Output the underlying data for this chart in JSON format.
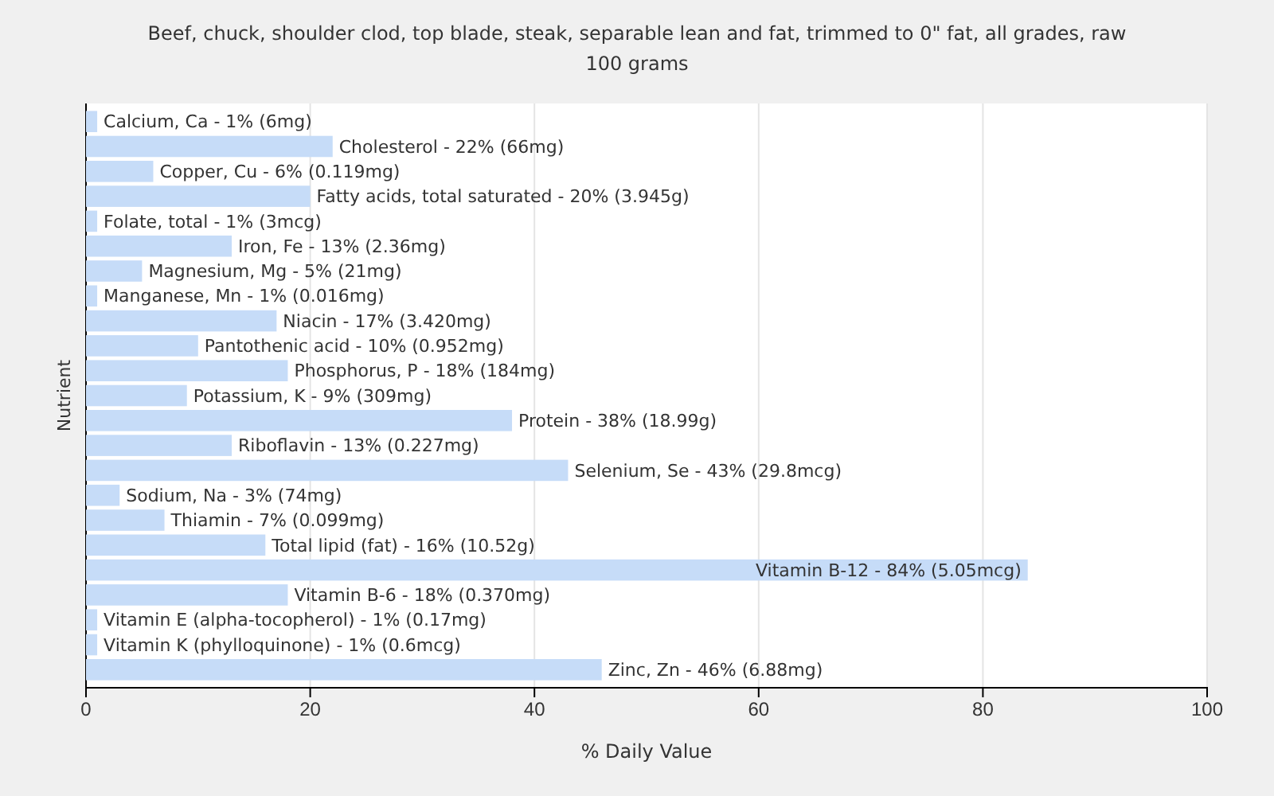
{
  "chart_data": {
    "type": "bar",
    "orientation": "horizontal",
    "title": "Beef, chuck, shoulder clod, top blade, steak, separable lean and fat, trimmed to 0\" fat, all grades, raw",
    "subtitle": "100 grams",
    "xlabel": "% Daily Value",
    "ylabel": "Nutrient",
    "categories": [
      "Calcium, Ca - 1% (6mg)",
      "Cholesterol - 22% (66mg)",
      "Copper, Cu - 6% (0.119mg)",
      "Fatty acids, total saturated - 20% (3.945g)",
      "Folate, total - 1% (3mcg)",
      "Iron, Fe - 13% (2.36mg)",
      "Magnesium, Mg - 5% (21mg)",
      "Manganese, Mn - 1% (0.016mg)",
      "Niacin - 17% (3.420mg)",
      "Pantothenic acid - 10% (0.952mg)",
      "Phosphorus, P - 18% (184mg)",
      "Potassium, K - 9% (309mg)",
      "Protein - 38% (18.99g)",
      "Riboflavin - 13% (0.227mg)",
      "Selenium, Se - 43% (29.8mcg)",
      "Sodium, Na - 3% (74mg)",
      "Thiamin - 7% (0.099mg)",
      "Total lipid (fat) - 16% (10.52g)",
      "Vitamin B-12 - 84% (5.05mcg)",
      "Vitamin B-6 - 18% (0.370mg)",
      "Vitamin E (alpha-tocopherol) - 1% (0.17mg)",
      "Vitamin K (phylloquinone) - 1% (0.6mcg)",
      "Zinc, Zn - 46% (6.88mg)"
    ],
    "values": [
      1,
      22,
      6,
      20,
      1,
      13,
      5,
      1,
      17,
      10,
      18,
      9,
      38,
      13,
      43,
      3,
      7,
      16,
      84,
      18,
      1,
      1,
      46
    ],
    "color": "#c6dcf8",
    "xlim": [
      0,
      100
    ],
    "xticks": [
      0,
      20,
      40,
      60,
      80,
      100
    ],
    "grid": "x"
  }
}
